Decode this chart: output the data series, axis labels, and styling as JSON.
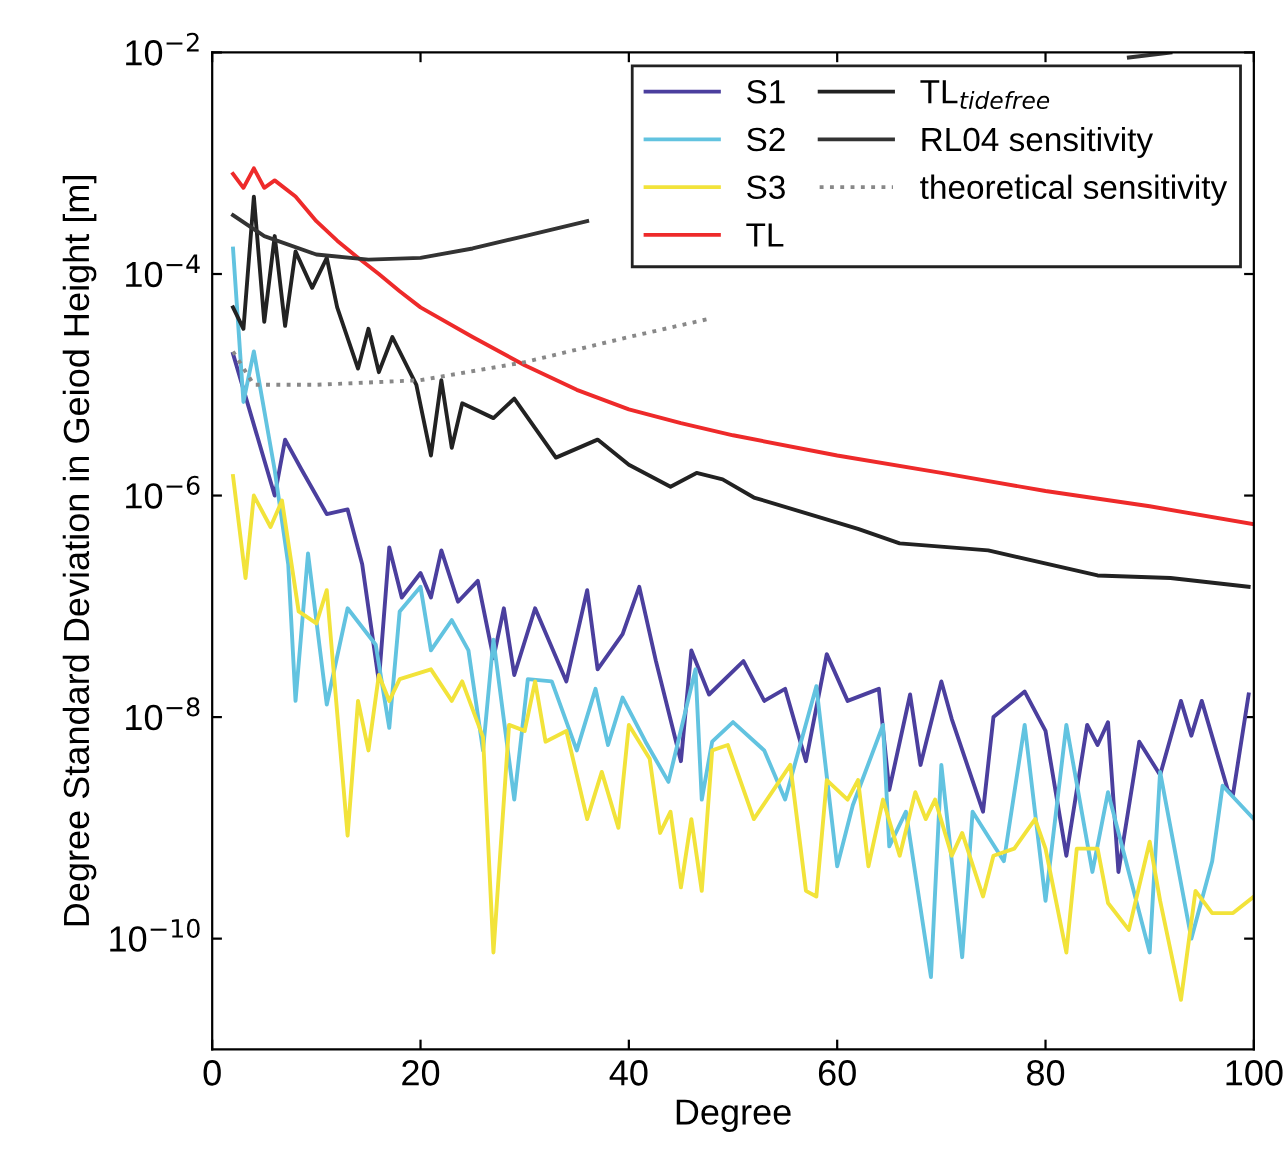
{
  "chart_data": {
    "type": "line",
    "xlabel": "Degree",
    "ylabel": "Degree Standard Deviation in Geiod Height [m]",
    "log": "y",
    "xlim": [
      0,
      100
    ],
    "ylim": [
      1e-11,
      0.01
    ],
    "xticks": [
      0,
      20,
      40,
      60,
      80,
      100
    ],
    "yticks": [
      {
        "value": 1e-10,
        "label": "10$^{−10}$"
      },
      {
        "value": 1e-08,
        "label": "10$^{−8}$"
      },
      {
        "value": 1e-06,
        "label": "10$^{−6}$"
      },
      {
        "value": 0.0001,
        "label": "10$^{−4}$"
      },
      {
        "value": 0.01,
        "label": "10$^{−2}$"
      }
    ],
    "grid": false,
    "legend": "top right",
    "marker": "none",
    "series": [
      {
        "name": "S1",
        "color": "#4b3f9e",
        "x": [
          2,
          6,
          7,
          8.6,
          11,
          13,
          14.4,
          16,
          17,
          18.2,
          20,
          21,
          22,
          23.6,
          25.5,
          27,
          28,
          29,
          31,
          34,
          36,
          37,
          39.4,
          41,
          42.6,
          45,
          46,
          47.7,
          51,
          53,
          55,
          57,
          59,
          61,
          64,
          65,
          67,
          68,
          70,
          71,
          74,
          75,
          78,
          80,
          82,
          84,
          85,
          86,
          87,
          89,
          91,
          93,
          94,
          95,
          97.5,
          98,
          99.5
        ],
        "values": [
          1.9e-05,
          1e-06,
          3.2e-06,
          1.7e-06,
          6.8e-07,
          7.5e-07,
          2.4e-07,
          2.1e-08,
          3.4e-07,
          1.2e-07,
          2e-07,
          1.2e-07,
          3.2e-07,
          1.1e-07,
          1.7e-07,
          3.4e-08,
          9.6e-08,
          2.4e-08,
          9.6e-08,
          2.1e-08,
          1.4e-07,
          2.7e-08,
          5.6e-08,
          1.5e-07,
          3.2e-08,
          4e-09,
          4e-08,
          1.6e-08,
          3.2e-08,
          1.4e-08,
          1.8e-08,
          4e-09,
          3.7e-08,
          1.4e-08,
          1.8e-08,
          2.2e-09,
          1.6e-08,
          3.7e-09,
          2.1e-08,
          9.6e-09,
          1.4e-09,
          1e-08,
          1.7e-08,
          7.5e-09,
          5.6e-10,
          8.5e-09,
          5.6e-09,
          9e-09,
          4e-10,
          6e-09,
          3e-09,
          1.4e-08,
          6.8e-09,
          1.4e-08,
          2.2e-09,
          2e-09,
          1.6e-08
        ]
      },
      {
        "name": "S2",
        "color": "#62c3e0",
        "x": [
          2,
          3,
          4,
          6,
          7.3,
          8,
          9.2,
          11,
          13,
          15.7,
          17,
          18,
          20,
          21,
          23,
          24.6,
          26,
          27,
          29,
          30.3,
          32.6,
          35,
          36.8,
          38,
          39.4,
          41.6,
          43.8,
          46.4,
          47,
          48,
          50,
          53,
          55,
          58,
          60,
          61.5,
          64.4,
          65,
          66.6,
          69,
          70,
          72,
          73,
          76,
          78,
          80,
          82,
          84.5,
          86,
          90,
          91,
          94,
          96,
          97,
          100
        ],
        "values": [
          0.00017,
          7e-06,
          2e-05,
          1.7e-06,
          2.4e-07,
          1.4e-08,
          3e-07,
          1.3e-08,
          9.6e-08,
          4.5e-08,
          8e-09,
          9e-08,
          1.5e-07,
          4e-08,
          7.5e-08,
          4e-08,
          5e-09,
          5e-08,
          1.8e-09,
          2.2e-08,
          2.1e-08,
          5e-09,
          1.8e-08,
          5.6e-09,
          1.5e-08,
          6e-09,
          2.6e-09,
          2.7e-08,
          1.8e-09,
          6e-09,
          9e-09,
          5e-09,
          1.8e-09,
          1.9e-08,
          4.5e-10,
          1.6e-09,
          8.5e-09,
          6.8e-10,
          1.4e-09,
          4.5e-11,
          3.7e-09,
          6.8e-11,
          1.4e-09,
          5e-10,
          8.5e-09,
          2.2e-10,
          8.5e-09,
          4e-10,
          2.1e-09,
          7.5e-11,
          3.2e-09,
          1e-10,
          5e-10,
          2.4e-09,
          1.2e-09
        ]
      },
      {
        "name": "S3",
        "color": "#f2e33a",
        "x": [
          2,
          3.2,
          4,
          5.6,
          6.7,
          8.3,
          10,
          11,
          13,
          14,
          15,
          16,
          17,
          18,
          21,
          23,
          24,
          26,
          27,
          28.5,
          30,
          31,
          32,
          34,
          36,
          37.4,
          39,
          40,
          42,
          43,
          44,
          45,
          46,
          47,
          48,
          49.5,
          52,
          55.5,
          57,
          58,
          59,
          61,
          62,
          63,
          64.4,
          66,
          67.5,
          68.5,
          69.4,
          71,
          72,
          74,
          75,
          77,
          79,
          80,
          82,
          83,
          85,
          86,
          88,
          90,
          91,
          93,
          94.4,
          96,
          98,
          100
        ],
        "values": [
          1.5e-06,
          1.8e-07,
          1e-06,
          5.2e-07,
          9e-07,
          9e-08,
          7e-08,
          1.4e-07,
          8.5e-10,
          1.4e-08,
          5e-09,
          2.4e-08,
          1.4e-08,
          2.2e-08,
          2.7e-08,
          1.4e-08,
          2.1e-08,
          6.6e-09,
          7.5e-11,
          8.5e-09,
          7.5e-09,
          2.1e-08,
          6e-09,
          7.5e-09,
          1.2e-09,
          3.2e-09,
          1e-09,
          8.5e-09,
          4.2e-09,
          9e-10,
          1.4e-09,
          2.9e-10,
          1.2e-09,
          2.7e-10,
          5e-09,
          5.6e-09,
          1.2e-09,
          3.7e-09,
          2.7e-10,
          2.4e-10,
          2.7e-09,
          1.8e-09,
          2.7e-09,
          4.5e-10,
          1.8e-09,
          5.6e-10,
          2.1e-09,
          1.2e-09,
          1.8e-09,
          5.6e-10,
          9e-10,
          2.4e-10,
          5.6e-10,
          6.5e-10,
          1.2e-09,
          6.5e-10,
          7.5e-11,
          6.5e-10,
          6.5e-10,
          2.1e-10,
          1.2e-10,
          7.5e-10,
          2.2e-10,
          2.8e-11,
          2.7e-10,
          1.7e-10,
          1.7e-10,
          2.4e-10
        ]
      },
      {
        "name": "TL",
        "color": "#ee2a2a",
        "x": [
          2,
          3,
          4,
          5,
          6,
          8,
          10,
          12,
          14,
          16,
          18,
          20,
          25,
          30,
          35,
          40,
          45,
          50,
          60,
          70,
          80,
          90,
          100
        ],
        "values": [
          0.0008,
          0.0006,
          0.0009,
          0.0006,
          0.0007,
          0.0005,
          0.0003,
          0.0002,
          0.00014,
          0.0001,
          7e-05,
          5e-05,
          2.7e-05,
          1.5e-05,
          9e-06,
          6e-06,
          4.5e-06,
          3.5e-06,
          2.3e-06,
          1.6e-06,
          1.1e-06,
          8e-07,
          5.5e-07
        ]
      },
      {
        "name": "TL$_{tidefree}$",
        "color": "#222222",
        "x": [
          2,
          3,
          4,
          5,
          6,
          7,
          8,
          9.6,
          11,
          12,
          14,
          15,
          16,
          17.3,
          19.6,
          21,
          22,
          23,
          24,
          27,
          29,
          33,
          37,
          40,
          44,
          46.5,
          49,
          52,
          62,
          66,
          74.5,
          85,
          92,
          99.5
        ],
        "values": [
          5e-05,
          3.2e-05,
          0.0005,
          3.7e-05,
          0.00022,
          3.4e-05,
          0.00016,
          7.5e-05,
          0.00014,
          5e-05,
          1.4e-05,
          3.2e-05,
          1.3e-05,
          2.7e-05,
          1e-05,
          2.3e-06,
          1.1e-05,
          2.7e-06,
          6.8e-06,
          5e-06,
          7.5e-06,
          2.2e-06,
          3.2e-06,
          1.9e-06,
          1.2e-06,
          1.6e-06,
          1.4e-06,
          9.6e-07,
          5e-07,
          3.7e-07,
          3.2e-07,
          1.9e-07,
          1.8e-07,
          1.5e-07
        ]
      },
      {
        "name": "RL04 sensitivity",
        "color": "#333333",
        "x": [
          2,
          5,
          10,
          15,
          20,
          25,
          30,
          36,
          60,
          88,
          92
        ],
        "values": [
          0.00034,
          0.00022,
          0.00015,
          0.000135,
          0.00014,
          0.00017,
          0.00022,
          0.0003,
          null,
          0.009,
          0.01
        ]
      },
      {
        "name": "theoretical sensitivity",
        "color": "#888888",
        "line_style": "dotted",
        "x": [
          2,
          4,
          10,
          20,
          30,
          40,
          48
        ],
        "values": [
          2e-05,
          1e-05,
          1e-05,
          1.1e-05,
          1.6e-05,
          2.7e-05,
          4e-05
        ]
      }
    ]
  }
}
